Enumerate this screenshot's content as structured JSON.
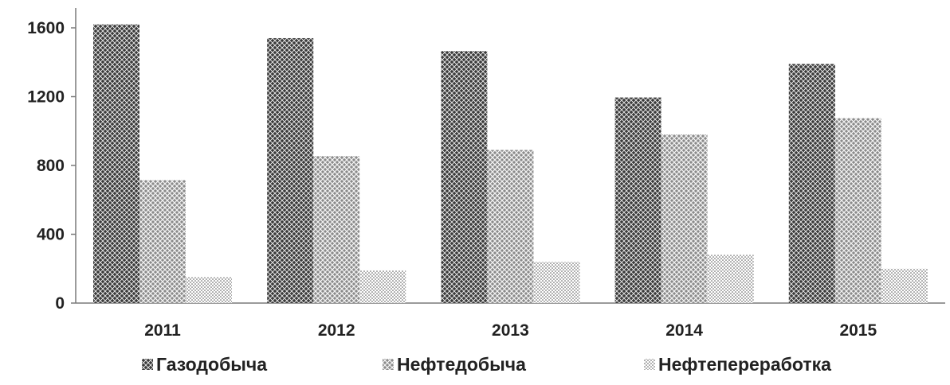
{
  "chart_data": {
    "type": "bar",
    "title": "",
    "xlabel": "",
    "ylabel": "",
    "categories": [
      "2011",
      "2012",
      "2013",
      "2014",
      "2015"
    ],
    "series": [
      {
        "name": "Газодобыча",
        "values": [
          1620,
          1540,
          1465,
          1195,
          1390
        ],
        "pattern": "dense-crosshatch",
        "color": "#2b2b2b"
      },
      {
        "name": "Нефтедобыча",
        "values": [
          715,
          855,
          890,
          980,
          1075
        ],
        "pattern": "medium-crosshatch",
        "color": "#6a6a6a"
      },
      {
        "name": "Нефтепереработка",
        "values": [
          150,
          190,
          240,
          280,
          200
        ],
        "pattern": "light-dots",
        "color": "#9a9a9a"
      }
    ],
    "ylim": [
      0,
      1600
    ],
    "yticks": [
      "0",
      "400",
      "800",
      "1200",
      "1600"
    ],
    "grid": false,
    "legend_position": "bottom"
  }
}
